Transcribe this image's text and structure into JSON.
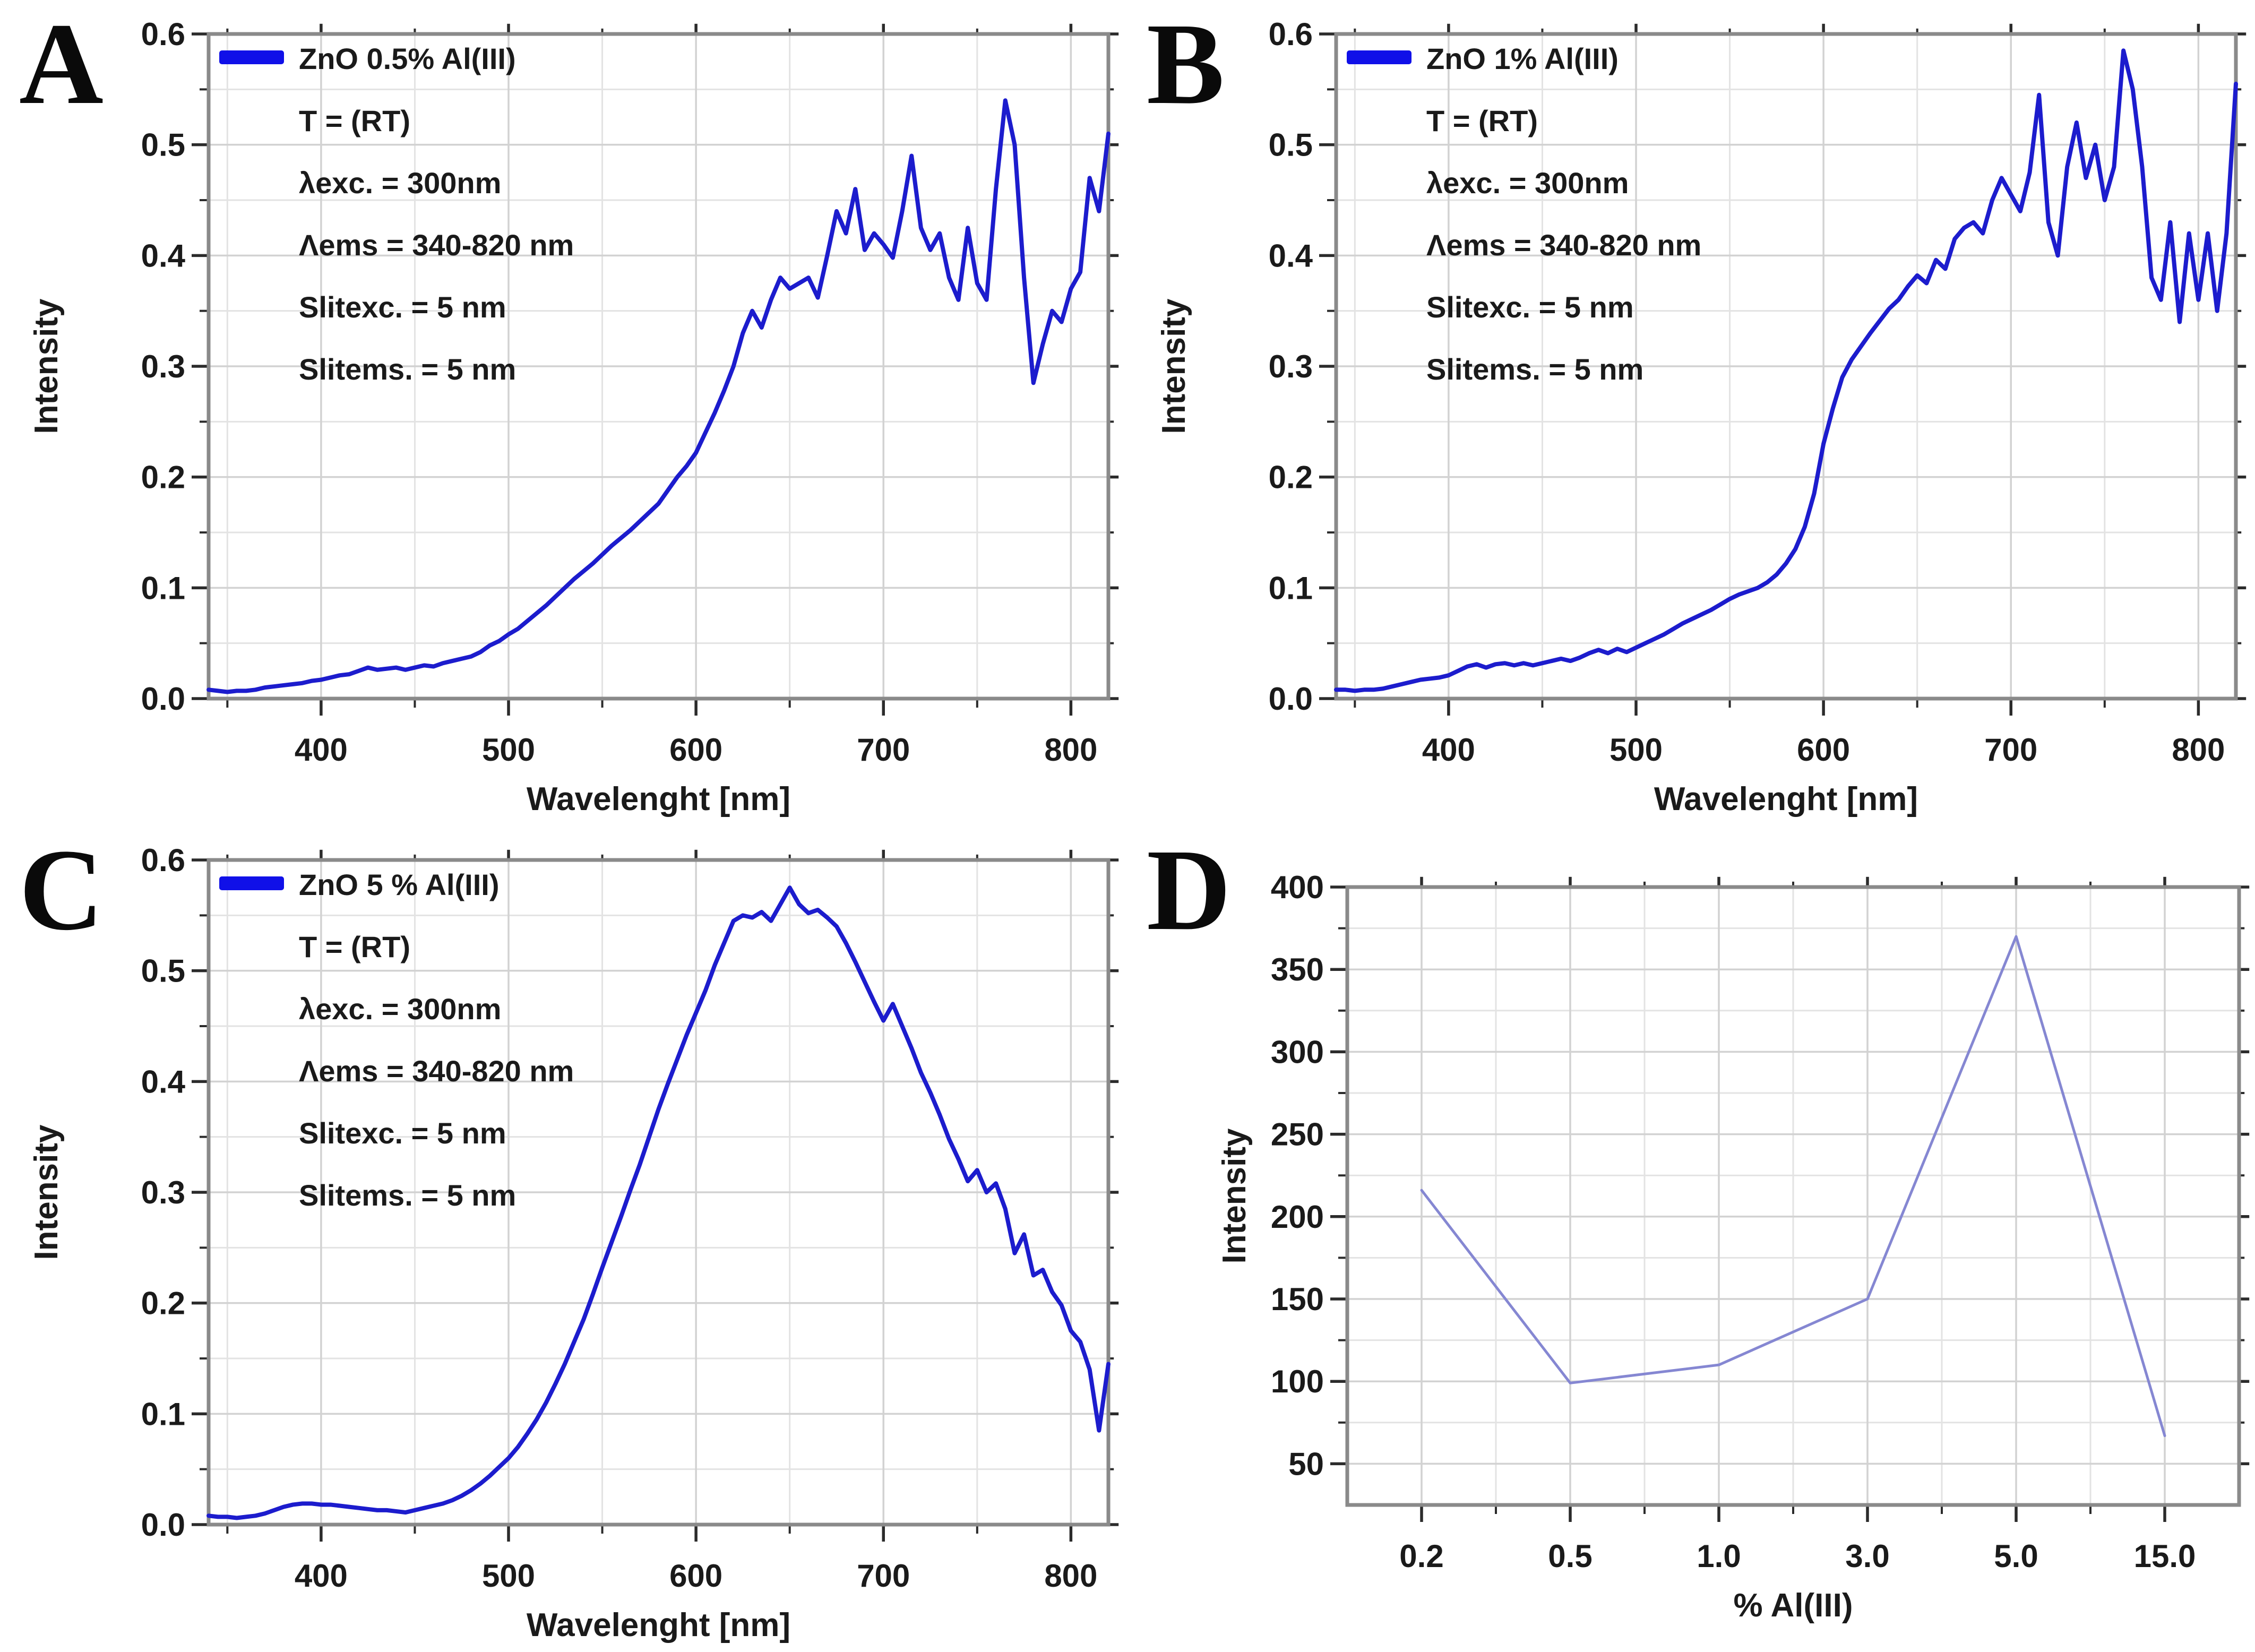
{
  "colors": {
    "background": "#ffffff",
    "curve_blue": "#1c1ccd",
    "legend_swatch_blue": "#1010e8",
    "panel_d_line": "#8587d2",
    "grid_major": "#d2d2d2",
    "grid_minor": "#e3e3e3",
    "frame": "#8a8a8a",
    "tick": "#2b2b2b",
    "text": "#1a1a1a"
  },
  "chart_data": [
    {
      "panel_letter": "A",
      "type": "line",
      "xlabel": "Wavelenght [nm]",
      "ylabel": "Intensity",
      "x_range": [
        340,
        820
      ],
      "y_range": [
        0,
        0.6
      ],
      "x_ticks_major": [
        400,
        500,
        600,
        700,
        800
      ],
      "x_tick_labels": [
        "400",
        "500",
        "600",
        "700",
        "800"
      ],
      "x_ticks_minor": [
        350,
        450,
        550,
        650,
        750
      ],
      "y_ticks_major": [
        0,
        0.1,
        0.2,
        0.3,
        0.4,
        0.5,
        0.6
      ],
      "y_tick_labels": [
        "0.0",
        "0.1",
        "0.2",
        "0.3",
        "0.4",
        "0.5",
        "0.6"
      ],
      "y_ticks_minor": [
        0.05,
        0.15,
        0.25,
        0.35,
        0.45,
        0.55
      ],
      "grid": true,
      "legend_position": "top-left",
      "legend_lines": [
        "ZnO 0.5% Al(III)",
        "T = (RT)",
        "λexc. = 300nm",
        "Λems = 340-820 nm",
        "Slitexc. = 5 nm",
        "Slitems. = 5 nm"
      ],
      "line_color": "#1c1ccd",
      "series": {
        "x0": 340,
        "dx": 5,
        "values": [
          0.008,
          0.007,
          0.006,
          0.007,
          0.007,
          0.008,
          0.01,
          0.011,
          0.012,
          0.013,
          0.014,
          0.016,
          0.017,
          0.019,
          0.021,
          0.022,
          0.025,
          0.028,
          0.026,
          0.027,
          0.028,
          0.026,
          0.028,
          0.03,
          0.029,
          0.032,
          0.034,
          0.036,
          0.038,
          0.042,
          0.048,
          0.052,
          0.058,
          0.063,
          0.07,
          0.077,
          0.084,
          0.092,
          0.1,
          0.108,
          0.115,
          0.122,
          0.13,
          0.138,
          0.145,
          0.152,
          0.16,
          0.168,
          0.176,
          0.188,
          0.2,
          0.21,
          0.222,
          0.24,
          0.258,
          0.278,
          0.3,
          0.33,
          0.35,
          0.335,
          0.36,
          0.38,
          0.37,
          0.375,
          0.38,
          0.362,
          0.4,
          0.44,
          0.42,
          0.46,
          0.405,
          0.42,
          0.41,
          0.398,
          0.44,
          0.49,
          0.425,
          0.405,
          0.42,
          0.38,
          0.36,
          0.425,
          0.375,
          0.36,
          0.46,
          0.54,
          0.5,
          0.38,
          0.285,
          0.32,
          0.35,
          0.34,
          0.37,
          0.385,
          0.47,
          0.44,
          0.51
        ]
      }
    },
    {
      "panel_letter": "B",
      "type": "line",
      "xlabel": "Wavelenght [nm]",
      "ylabel": "Intensity",
      "x_range": [
        340,
        820
      ],
      "y_range": [
        0,
        0.6
      ],
      "x_ticks_major": [
        400,
        500,
        600,
        700,
        800
      ],
      "x_tick_labels": [
        "400",
        "500",
        "600",
        "700",
        "800"
      ],
      "x_ticks_minor": [
        350,
        450,
        550,
        650,
        750
      ],
      "y_ticks_major": [
        0,
        0.1,
        0.2,
        0.3,
        0.4,
        0.5,
        0.6
      ],
      "y_tick_labels": [
        "0.0",
        "0.1",
        "0.2",
        "0.3",
        "0.4",
        "0.5",
        "0.6"
      ],
      "y_ticks_minor": [
        0.05,
        0.15,
        0.25,
        0.35,
        0.45,
        0.55
      ],
      "grid": true,
      "legend_position": "top-left",
      "legend_lines": [
        "ZnO 1% Al(III)",
        "T = (RT)",
        "λexc. = 300nm",
        "Λems = 340-820 nm",
        "Slitexc. = 5 nm",
        "Slitems. = 5 nm"
      ],
      "line_color": "#1c1ccd",
      "series": {
        "x0": 340,
        "dx": 5,
        "values": [
          0.008,
          0.008,
          0.007,
          0.008,
          0.008,
          0.009,
          0.011,
          0.013,
          0.015,
          0.017,
          0.018,
          0.019,
          0.021,
          0.025,
          0.029,
          0.031,
          0.028,
          0.031,
          0.032,
          0.03,
          0.032,
          0.03,
          0.032,
          0.034,
          0.036,
          0.034,
          0.037,
          0.041,
          0.044,
          0.041,
          0.045,
          0.042,
          0.046,
          0.05,
          0.054,
          0.058,
          0.063,
          0.068,
          0.072,
          0.076,
          0.08,
          0.085,
          0.09,
          0.094,
          0.097,
          0.1,
          0.105,
          0.112,
          0.122,
          0.135,
          0.155,
          0.185,
          0.23,
          0.262,
          0.29,
          0.306,
          0.318,
          0.33,
          0.341,
          0.352,
          0.36,
          0.372,
          0.382,
          0.375,
          0.396,
          0.388,
          0.415,
          0.425,
          0.43,
          0.42,
          0.45,
          0.47,
          0.455,
          0.44,
          0.475,
          0.545,
          0.43,
          0.4,
          0.48,
          0.52,
          0.47,
          0.5,
          0.45,
          0.48,
          0.585,
          0.55,
          0.48,
          0.38,
          0.36,
          0.43,
          0.34,
          0.42,
          0.36,
          0.42,
          0.35,
          0.42,
          0.555
        ]
      }
    },
    {
      "panel_letter": "C",
      "type": "line",
      "xlabel": "Wavelenght [nm]",
      "ylabel": "Intensity",
      "x_range": [
        340,
        820
      ],
      "y_range": [
        0,
        0.6
      ],
      "x_ticks_major": [
        400,
        500,
        600,
        700,
        800
      ],
      "x_tick_labels": [
        "400",
        "500",
        "600",
        "700",
        "800"
      ],
      "x_ticks_minor": [
        350,
        450,
        550,
        650,
        750
      ],
      "y_ticks_major": [
        0,
        0.1,
        0.2,
        0.3,
        0.4,
        0.5,
        0.6
      ],
      "y_tick_labels": [
        "0.0",
        "0.1",
        "0.2",
        "0.3",
        "0.4",
        "0.5",
        "0.6"
      ],
      "y_ticks_minor": [
        0.05,
        0.15,
        0.25,
        0.35,
        0.45,
        0.55
      ],
      "grid": true,
      "legend_position": "top-left",
      "legend_lines": [
        "ZnO 5 % Al(III)",
        "T = (RT)",
        "λexc. = 300nm",
        "Λems = 340-820 nm",
        "Slitexc. = 5 nm",
        "Slitems. = 5 nm"
      ],
      "line_color": "#1c1ccd",
      "series": {
        "x0": 340,
        "dx": 5,
        "values": [
          0.008,
          0.007,
          0.007,
          0.006,
          0.007,
          0.008,
          0.01,
          0.013,
          0.016,
          0.018,
          0.019,
          0.019,
          0.018,
          0.018,
          0.017,
          0.016,
          0.015,
          0.014,
          0.013,
          0.013,
          0.012,
          0.011,
          0.013,
          0.015,
          0.017,
          0.019,
          0.022,
          0.026,
          0.031,
          0.037,
          0.044,
          0.052,
          0.06,
          0.07,
          0.082,
          0.095,
          0.11,
          0.127,
          0.145,
          0.165,
          0.185,
          0.208,
          0.232,
          0.255,
          0.278,
          0.302,
          0.325,
          0.35,
          0.375,
          0.398,
          0.42,
          0.442,
          0.462,
          0.482,
          0.505,
          0.525,
          0.545,
          0.55,
          0.548,
          0.553,
          0.545,
          0.56,
          0.575,
          0.56,
          0.552,
          0.555,
          0.548,
          0.54,
          0.525,
          0.508,
          0.49,
          0.472,
          0.455,
          0.47,
          0.45,
          0.43,
          0.408,
          0.39,
          0.37,
          0.348,
          0.33,
          0.31,
          0.32,
          0.3,
          0.308,
          0.285,
          0.245,
          0.262,
          0.225,
          0.23,
          0.21,
          0.198,
          0.175,
          0.165,
          0.14,
          0.085,
          0.145
        ]
      }
    },
    {
      "panel_letter": "D",
      "type": "line",
      "is_category": true,
      "xlabel": "% Al(III)",
      "ylabel": "Intensity",
      "categories": [
        "0.2",
        "0.5",
        "1.0",
        "3.0",
        "5.0",
        "15.0"
      ],
      "values": [
        216,
        99,
        110,
        150,
        370,
        67
      ],
      "y_range": [
        25,
        400
      ],
      "y_ticks_major": [
        50,
        100,
        150,
        200,
        250,
        300,
        350,
        400
      ],
      "y_tick_labels": [
        "50",
        "100",
        "150",
        "200",
        "250",
        "300",
        "350",
        "400"
      ],
      "y_ticks_minor": [
        75,
        125,
        175,
        225,
        275,
        325,
        375
      ],
      "grid": true,
      "legend_lines": null,
      "line_color": "#8587d2"
    }
  ]
}
